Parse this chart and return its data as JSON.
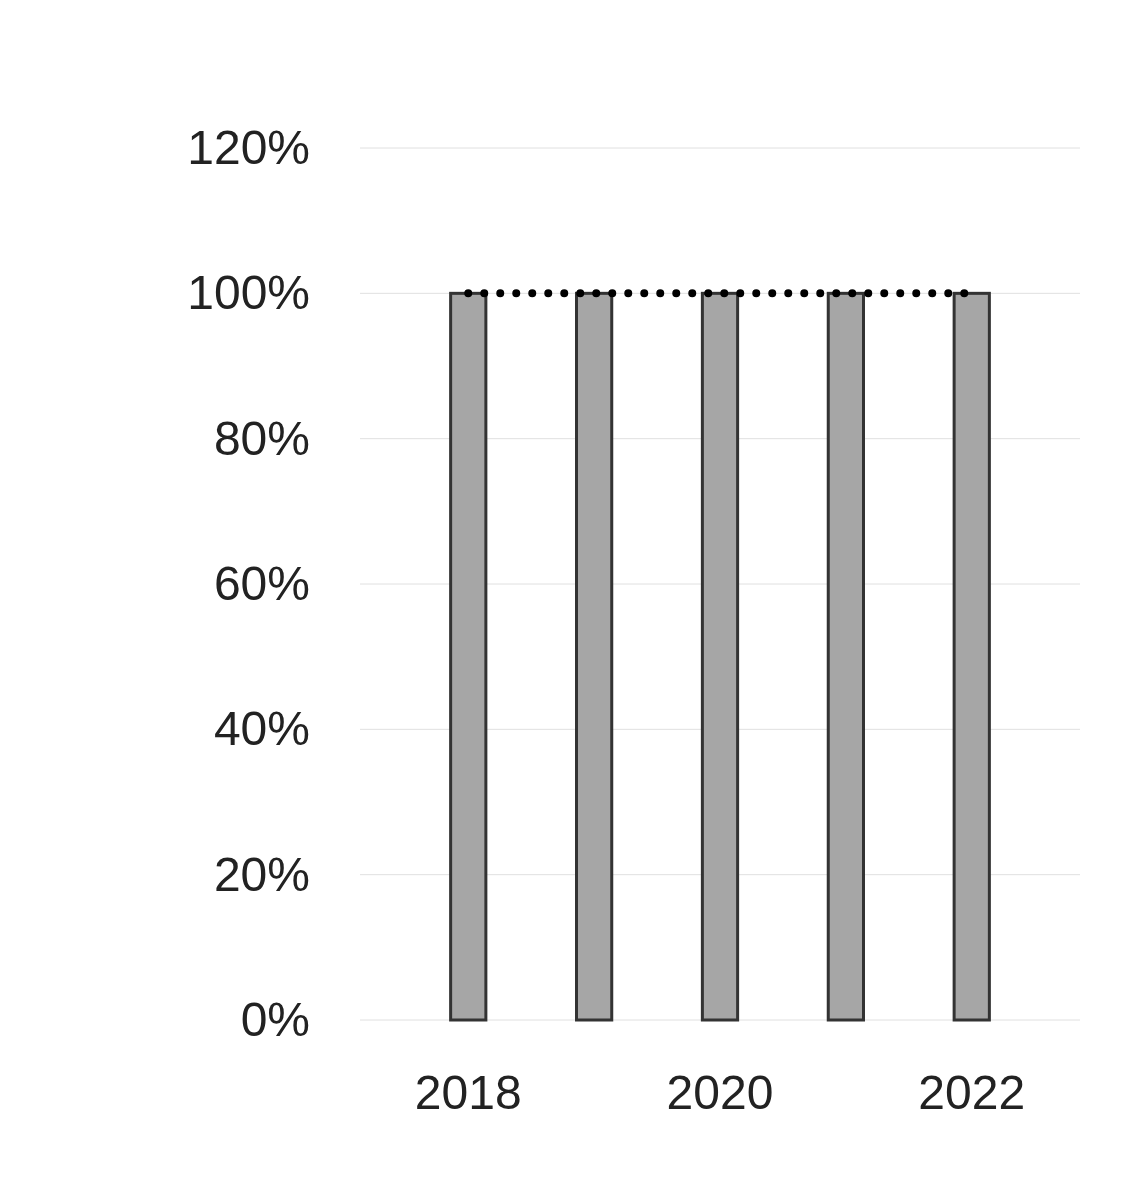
{
  "chart_data": {
    "type": "bar",
    "categories": [
      "2018",
      null,
      "2020",
      null,
      "2022"
    ],
    "values": [
      100,
      100,
      100,
      100,
      100
    ],
    "color": "#a6a6a6",
    "ylim": [
      0,
      120
    ],
    "yticks": [
      {
        "value": 0,
        "label": "0%"
      },
      {
        "value": 20,
        "label": "20%"
      },
      {
        "value": 40,
        "label": "40%"
      },
      {
        "value": 60,
        "label": "60%"
      },
      {
        "value": 80,
        "label": "80%"
      },
      {
        "value": 100,
        "label": "100%"
      },
      {
        "value": 120,
        "label": "120%"
      }
    ],
    "grid": "y",
    "ref_lines": [
      {
        "axis": "y",
        "value": 100,
        "color": "#000000",
        "line_style": "dotted"
      }
    ]
  }
}
